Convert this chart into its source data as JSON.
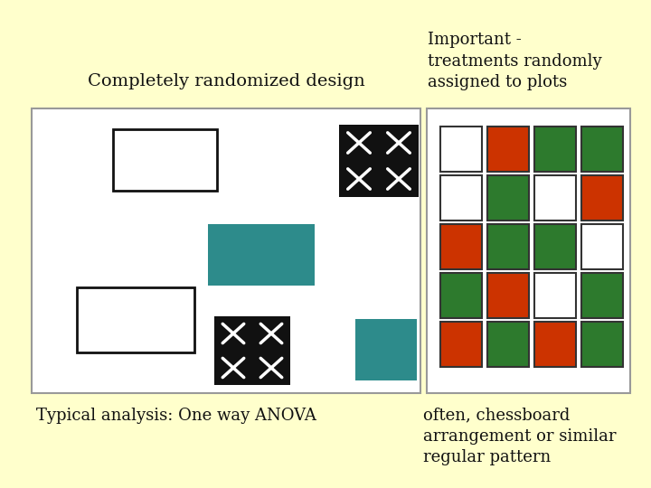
{
  "bg_color": "#ffffcc",
  "left_panel_bg": "#ffffff",
  "right_panel_bg": "#ffffff",
  "title_left": "Completely randomized design",
  "title_right": "Important -\ntreatments randomly\nassigned to plots",
  "label_left": "Typical analysis: One way ANOVA",
  "label_right": "often, chessboard\narrangement or similar\nregular pattern",
  "teal_color": "#2d8b8b",
  "red_color": "#cc3300",
  "green_color": "#2d7a2d",
  "black_color": "#111111",
  "white_color": "#ffffff",
  "grid_colors": [
    [
      "white",
      "red",
      "green",
      "green"
    ],
    [
      "white",
      "green",
      "white",
      "red"
    ],
    [
      "red",
      "green",
      "green",
      "white"
    ],
    [
      "green",
      "red",
      "white",
      "green"
    ],
    [
      "red",
      "green",
      "red",
      "green"
    ]
  ]
}
